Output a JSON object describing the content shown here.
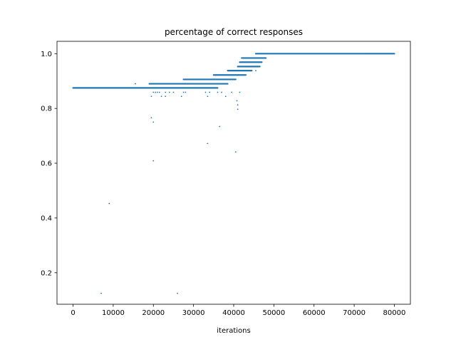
{
  "chart_data": {
    "type": "scatter",
    "title": "percentage of correct responses",
    "xlabel": "iterations",
    "ylabel": "",
    "xlim": [
      -4000,
      84000
    ],
    "ylim": [
      0.085,
      1.045
    ],
    "xticks": [
      0,
      10000,
      20000,
      30000,
      40000,
      50000,
      60000,
      70000,
      80000
    ],
    "xtick_labels": [
      "0",
      "10000",
      "20000",
      "30000",
      "40000",
      "50000",
      "60000",
      "70000",
      "80000"
    ],
    "yticks": [
      0.2,
      0.4,
      0.6,
      0.8,
      1.0
    ],
    "ytick_labels": [
      "0.2",
      "0.4",
      "0.6",
      "0.8",
      "1.0"
    ],
    "grid": false,
    "marker_color": "#1f77b4",
    "bands": [
      {
        "y": 0.875,
        "x_start": 0,
        "x_end": 36000
      },
      {
        "y": 0.89,
        "x_start": 19000,
        "x_end": 38500
      },
      {
        "y": 0.906,
        "x_start": 27500,
        "x_end": 40500
      },
      {
        "y": 0.922,
        "x_start": 35000,
        "x_end": 43000
      },
      {
        "y": 0.938,
        "x_start": 38500,
        "x_end": 44500
      },
      {
        "y": 0.953,
        "x_start": 41000,
        "x_end": 46500
      },
      {
        "y": 0.969,
        "x_start": 41500,
        "x_end": 47000
      },
      {
        "y": 0.984,
        "x_start": 42000,
        "x_end": 48000
      },
      {
        "y": 1.0,
        "x_start": 45500,
        "x_end": 80000
      }
    ],
    "points": [
      {
        "x": 7000,
        "y": 0.125
      },
      {
        "x": 26000,
        "y": 0.125
      },
      {
        "x": 9000,
        "y": 0.453
      },
      {
        "x": 19500,
        "y": 0.766
      },
      {
        "x": 20000,
        "y": 0.75
      },
      {
        "x": 20000,
        "y": 0.609
      },
      {
        "x": 33500,
        "y": 0.672
      },
      {
        "x": 36500,
        "y": 0.734
      },
      {
        "x": 40500,
        "y": 0.641
      },
      {
        "x": 40800,
        "y": 0.828
      },
      {
        "x": 41000,
        "y": 0.813
      },
      {
        "x": 41000,
        "y": 0.797
      },
      {
        "x": 15500,
        "y": 0.89
      },
      {
        "x": 19500,
        "y": 0.844
      },
      {
        "x": 22000,
        "y": 0.844
      },
      {
        "x": 23000,
        "y": 0.844
      },
      {
        "x": 27000,
        "y": 0.844
      },
      {
        "x": 33500,
        "y": 0.844
      },
      {
        "x": 38000,
        "y": 0.844
      },
      {
        "x": 41500,
        "y": 0.859
      },
      {
        "x": 45500,
        "y": 0.938
      },
      {
        "x": 20000,
        "y": 0.859
      },
      {
        "x": 20500,
        "y": 0.859
      },
      {
        "x": 21000,
        "y": 0.859
      },
      {
        "x": 21500,
        "y": 0.859
      },
      {
        "x": 23000,
        "y": 0.859
      },
      {
        "x": 24000,
        "y": 0.859
      },
      {
        "x": 25000,
        "y": 0.859
      },
      {
        "x": 27500,
        "y": 0.859
      },
      {
        "x": 28000,
        "y": 0.859
      },
      {
        "x": 33000,
        "y": 0.859
      },
      {
        "x": 34000,
        "y": 0.859
      },
      {
        "x": 36000,
        "y": 0.859
      },
      {
        "x": 37000,
        "y": 0.859
      },
      {
        "x": 39500,
        "y": 0.859
      }
    ]
  }
}
